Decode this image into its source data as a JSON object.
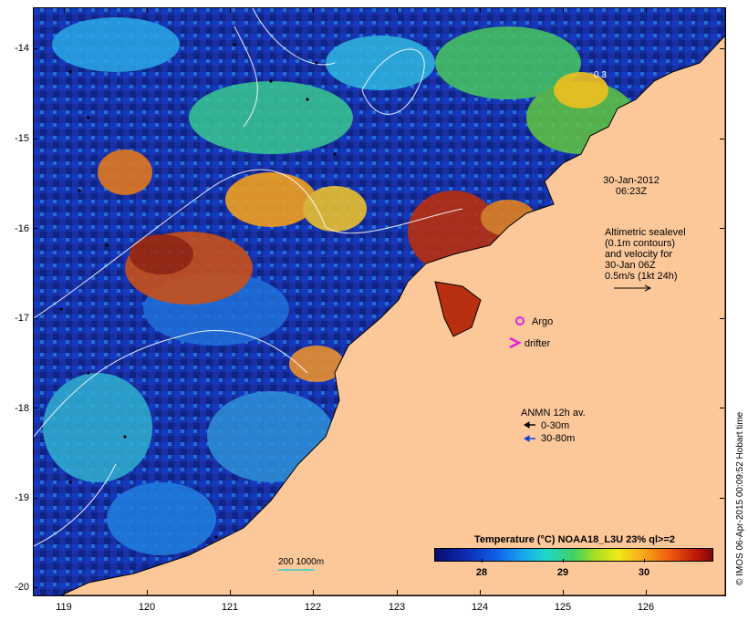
{
  "axes": {
    "y_ticks": [
      "-14",
      "-15",
      "-16",
      "-17",
      "-18",
      "-19",
      "-20"
    ],
    "x_ticks": [
      "119",
      "120",
      "121",
      "122",
      "123",
      "124",
      "125",
      "126"
    ]
  },
  "timestamp": {
    "date": "30-Jan-2012",
    "time": "06:23Z"
  },
  "sealevel_note": [
    "Altimetric sealevel",
    "(0.1m contours)",
    "and velocity for",
    "30-Jan 06Z",
    "0.5m/s (1kt 24h)"
  ],
  "legend": {
    "argo": "Argo",
    "drifter": "drifter",
    "anmn_title": "ANMN 12h av.",
    "anmn_shallow": "0-30m",
    "anmn_deep": "30-80m"
  },
  "bathymetry_label": "200  1000m",
  "station_label": "0.3",
  "colorbar": {
    "title": "Temperature (°C) NOAA18_L3U 23% ql>=2",
    "ticks": [
      "28",
      "29",
      "30"
    ]
  },
  "credit": "© IMOS 06-Apr-2015 00:09:52 Hobart time",
  "colors": {
    "land": "#fcc89a",
    "ocean_cold": "#1a2fa0",
    "ocean_warm": "#c84a10",
    "argo": "#e020e0",
    "drifter": "#e020e0",
    "anmn_shallow": "#000000",
    "anmn_deep": "#1040e0"
  }
}
